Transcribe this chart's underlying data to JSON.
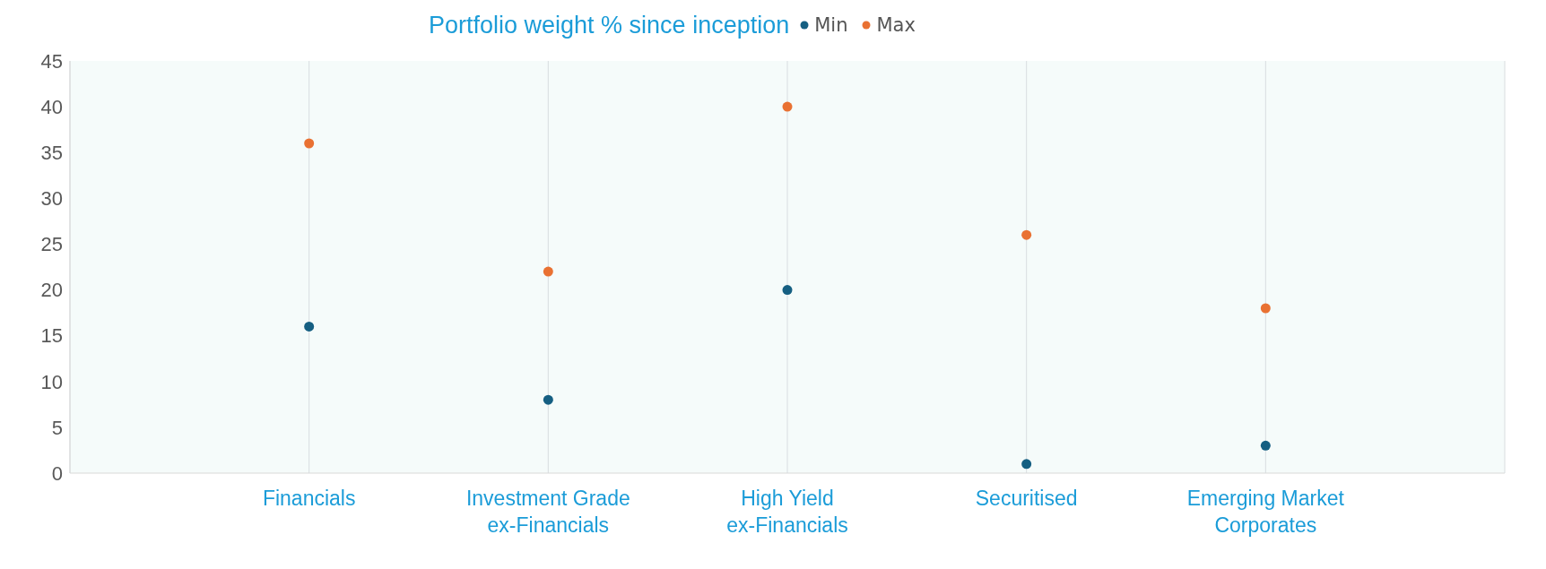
{
  "chart_data": {
    "type": "scatter",
    "title": "Portfolio weight % since inception",
    "categories": [
      "Financials",
      "Investment Grade ex-Financials",
      "High Yield ex-Financials",
      "Securitised",
      "Emerging Market Corporates"
    ],
    "series": [
      {
        "name": "Min",
        "color": "#155f82",
        "values": [
          16,
          8,
          20,
          1,
          3
        ]
      },
      {
        "name": "Max",
        "color": "#e97132",
        "values": [
          36,
          22,
          40,
          26,
          18
        ]
      }
    ],
    "ylim": [
      0,
      45
    ],
    "yticks": [
      0,
      5,
      10,
      15,
      20,
      25,
      30,
      35,
      40,
      45
    ],
    "grid": "x",
    "legend": "top",
    "marker": "circle"
  }
}
